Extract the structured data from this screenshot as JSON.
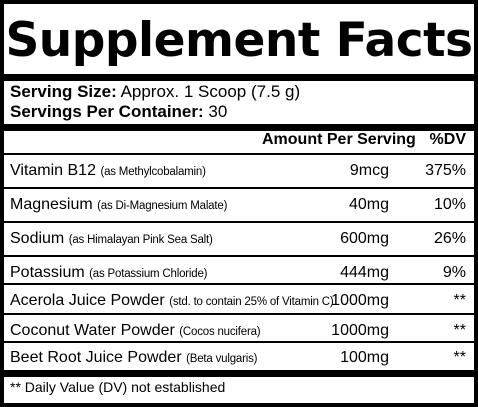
{
  "title": "Supplement Facts",
  "serving": {
    "size_label": "Serving Size:",
    "size_value": "Approx. 1 Scoop (7.5 g)",
    "per_container_label": "Servings Per Container:",
    "per_container_value": "30"
  },
  "columns": {
    "amount": "Amount Per Serving",
    "dv": "%DV"
  },
  "rows": [
    {
      "name": "Vitamin B12",
      "note": "(as Methylcobalamin)",
      "amount": "9mcg",
      "dv": "375%"
    },
    {
      "name": "Magnesium",
      "note": "(as Di-Magnesium Malate)",
      "amount": "40mg",
      "dv": "10%"
    },
    {
      "name": "Sodium",
      "note": "(as Himalayan Pink Sea Salt)",
      "amount": "600mg",
      "dv": "26%"
    },
    {
      "name": "Potassium",
      "note": "(as Potassium Chloride)",
      "amount": "444mg",
      "dv": "9%"
    },
    {
      "name": "Acerola Juice Powder",
      "note": "(std. to contain 25% of Vitamin C)",
      "amount": "1000mg",
      "dv": "**"
    },
    {
      "name": "Coconut Water Powder",
      "note": "(Cocos nucifera)",
      "amount": "1000mg",
      "dv": "**"
    },
    {
      "name": "Beet Root Juice Powder",
      "note": "(Beta vulgaris)",
      "amount": "100mg",
      "dv": "**"
    }
  ],
  "footnote": "** Daily Value (DV) not established"
}
